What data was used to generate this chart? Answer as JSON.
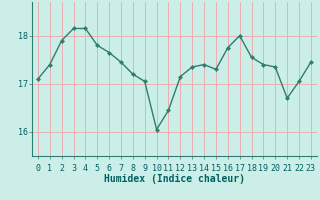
{
  "x": [
    0,
    1,
    2,
    3,
    4,
    5,
    6,
    7,
    8,
    9,
    10,
    11,
    12,
    13,
    14,
    15,
    16,
    17,
    18,
    19,
    20,
    21,
    22,
    23
  ],
  "y": [
    17.1,
    17.4,
    17.9,
    18.15,
    18.15,
    17.8,
    17.65,
    17.45,
    17.2,
    17.05,
    16.05,
    16.45,
    17.15,
    17.35,
    17.4,
    17.3,
    17.75,
    18.0,
    17.55,
    17.4,
    17.35,
    16.7,
    17.05,
    17.45
  ],
  "line_color": "#2e7d6e",
  "marker": "D",
  "markersize": 2.2,
  "linewidth": 1.0,
  "bg_color": "#cceee8",
  "grid_color": "#e8b0b0",
  "xlabel": "Humidex (Indice chaleur)",
  "xlabel_fontsize": 7,
  "tick_fontsize": 6,
  "yticks": [
    16,
    17,
    18
  ],
  "ylim": [
    15.5,
    18.7
  ],
  "xlim": [
    -0.5,
    23.5
  ]
}
